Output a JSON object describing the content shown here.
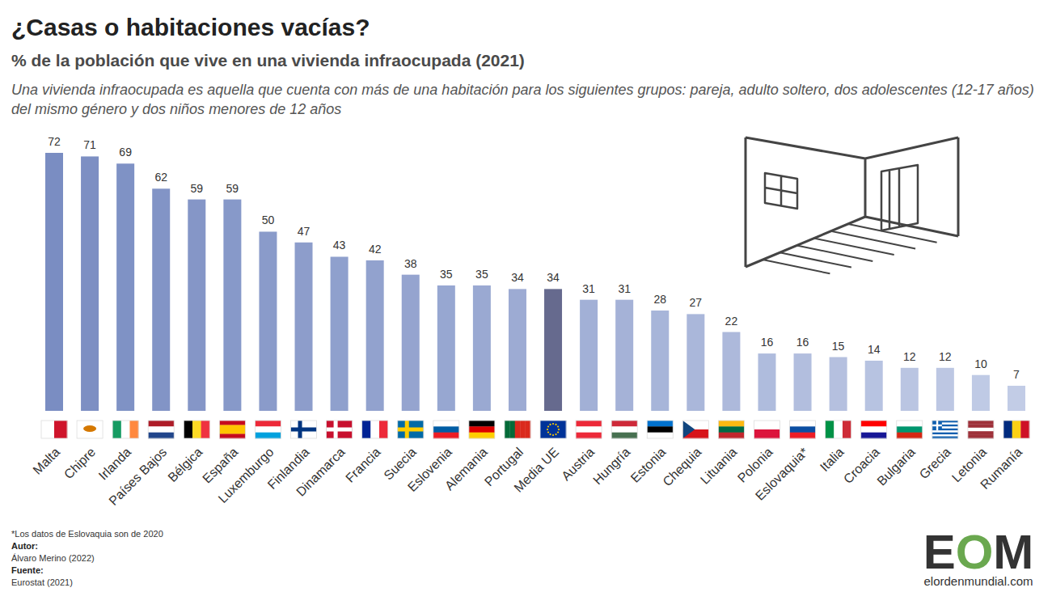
{
  "chart_data": {
    "type": "bar",
    "title": "¿Casas o habitaciones vacías?",
    "subtitle": "% de la población que vive en una vivienda infraocupada (2021)",
    "description": "Una vivienda infraocupada es aquella que cuenta con más de una habitación para los siguientes grupos: pareja, adulto soltero, dos adolescentes (12-17 años) del mismo género y dos niños menores de 12 años",
    "categories": [
      "Malta",
      "Chipre",
      "Irlanda",
      "Países Bajos",
      "Bélgica",
      "España",
      "Luxemburgo",
      "Finlandia",
      "Dinamarca",
      "Francia",
      "Suecia",
      "Eslovenia",
      "Alemania",
      "Portugal",
      "Media UE",
      "Austria",
      "Hungría",
      "Estonia",
      "Chequia",
      "Lituania",
      "Polonia",
      "Eslovaquia*",
      "Italia",
      "Croacia",
      "Bulgaria",
      "Grecia",
      "Letonia",
      "Rumanía"
    ],
    "values": [
      72,
      71,
      69,
      62,
      59,
      59,
      50,
      47,
      43,
      42,
      38,
      35,
      35,
      34,
      34,
      31,
      31,
      28,
      27,
      22,
      16,
      16,
      15,
      14,
      12,
      12,
      10,
      7
    ],
    "colors": [
      "#7a8dc2",
      "#7d8fc3",
      "#7f92c5",
      "#8294c6",
      "#8596c7",
      "#8799c9",
      "#8a9bca",
      "#8d9dcb",
      "#8fa0cd",
      "#92a2ce",
      "#95a4cf",
      "#97a7d1",
      "#9aa9d2",
      "#9dabd3",
      "#666a8e",
      "#a2b0d6",
      "#a5b2d7",
      "#a7b5d9",
      "#aab7da",
      "#adb9db",
      "#afbcdd",
      "#b2bede",
      "#b5c0df",
      "#b7c3e1",
      "#bac5e2",
      "#bdc7e3",
      "#bfcae5",
      "#c2cce6"
    ],
    "ylim": [
      0,
      72
    ],
    "data_labels": true,
    "tick_labels": "x",
    "grid": false,
    "footnote": "*Los datos de Eslovaquia son de 2020",
    "credits": [
      {
        "label": "Autor:",
        "text": "Álvaro Merino (2022)"
      },
      {
        "label": "Fuente:",
        "text": "Eurostat (2021)"
      }
    ],
    "logo": "EOM",
    "logo_url": "elordenmundial.com"
  }
}
